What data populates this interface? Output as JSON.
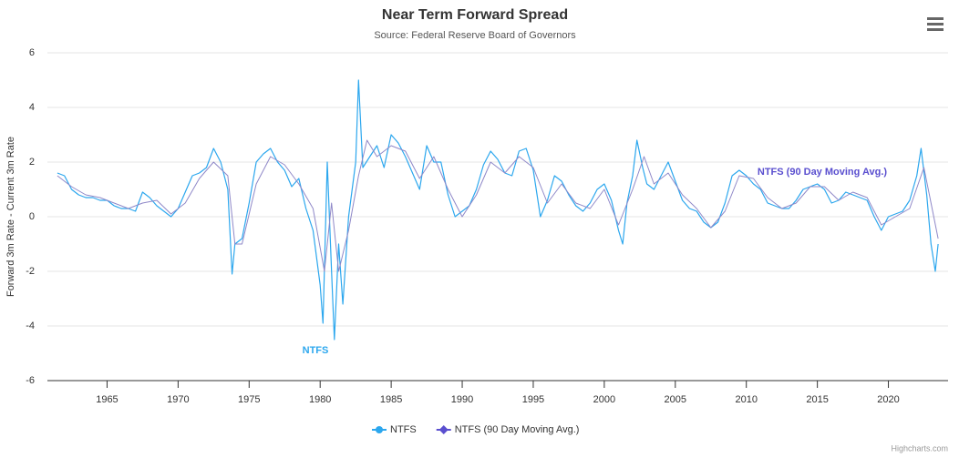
{
  "chart_data": {
    "type": "line",
    "title": "Near Term Forward Spread",
    "subtitle": "Source: Federal Reserve Board of Governors",
    "y_axis_label": "Forward 3m Rate - Current 3m Rate",
    "credits": "Highcharts.com",
    "xlim": [
      1960.8,
      2024.2
    ],
    "xticks": [
      1965,
      1970,
      1975,
      1980,
      1985,
      1990,
      1995,
      2000,
      2005,
      2010,
      2015,
      2020
    ],
    "ylim": [
      -6,
      6
    ],
    "yticks": [
      -6,
      -4,
      -2,
      0,
      2,
      4,
      6
    ],
    "grid": true,
    "legend": "bottom",
    "series": [
      {
        "name": "NTFS",
        "color": "#2ca7ee",
        "x": [
          1961.5,
          1962,
          1962.5,
          1963,
          1963.5,
          1964,
          1964.5,
          1965,
          1965.5,
          1966,
          1966.5,
          1967,
          1967.5,
          1968,
          1968.5,
          1969,
          1969.5,
          1970,
          1970.5,
          1971,
          1971.5,
          1972,
          1972.5,
          1973,
          1973.5,
          1973.8,
          1974,
          1974.5,
          1975,
          1975.5,
          1976,
          1976.5,
          1977,
          1977.5,
          1978,
          1978.5,
          1979,
          1979.5,
          1980,
          1980.2,
          1980.5,
          1980.8,
          1981,
          1981.3,
          1981.6,
          1982,
          1982.5,
          1982.7,
          1983,
          1983.5,
          1984,
          1984.5,
          1985,
          1985.5,
          1986,
          1986.5,
          1987,
          1987.5,
          1988,
          1988.5,
          1989,
          1989.5,
          1990,
          1990.5,
          1991,
          1991.5,
          1992,
          1992.5,
          1993,
          1993.5,
          1994,
          1994.5,
          1995,
          1995.5,
          1996,
          1996.5,
          1997,
          1997.5,
          1998,
          1998.5,
          1999,
          1999.5,
          2000,
          2000.5,
          2001,
          2001.3,
          2001.6,
          2002,
          2002.3,
          2002.7,
          2003,
          2003.5,
          2004,
          2004.5,
          2005,
          2005.5,
          2006,
          2006.5,
          2007,
          2007.5,
          2008,
          2008.5,
          2009,
          2009.5,
          2010,
          2010.5,
          2011,
          2011.5,
          2012,
          2012.5,
          2013,
          2013.5,
          2014,
          2014.5,
          2015,
          2015.5,
          2016,
          2016.5,
          2017,
          2017.5,
          2018,
          2018.5,
          2019,
          2019.5,
          2020,
          2020.5,
          2021,
          2021.5,
          2022,
          2022.3,
          2022.7,
          2023,
          2023.3,
          2023.5
        ],
        "values": [
          1.6,
          1.5,
          1.0,
          0.8,
          0.7,
          0.7,
          0.6,
          0.6,
          0.4,
          0.3,
          0.3,
          0.2,
          0.9,
          0.7,
          0.4,
          0.2,
          0.0,
          0.3,
          0.9,
          1.5,
          1.6,
          1.8,
          2.5,
          2.0,
          1.0,
          -2.1,
          -1.0,
          -0.8,
          0.5,
          2.0,
          2.3,
          2.5,
          2.0,
          1.7,
          1.1,
          1.4,
          0.3,
          -0.5,
          -2.5,
          -3.9,
          2.0,
          -2.0,
          -4.5,
          -1.0,
          -3.2,
          0.0,
          2.0,
          5.0,
          1.8,
          2.2,
          2.6,
          1.8,
          3.0,
          2.7,
          2.2,
          1.6,
          1.0,
          2.6,
          2.0,
          2.0,
          0.8,
          0.0,
          0.2,
          0.4,
          1.0,
          1.9,
          2.4,
          2.1,
          1.6,
          1.5,
          2.4,
          2.5,
          1.7,
          0.0,
          0.6,
          1.5,
          1.3,
          0.8,
          0.4,
          0.2,
          0.5,
          1.0,
          1.2,
          0.6,
          -0.5,
          -1.0,
          0.5,
          1.5,
          2.8,
          1.8,
          1.2,
          1.0,
          1.5,
          2.0,
          1.3,
          0.6,
          0.3,
          0.2,
          -0.2,
          -0.4,
          -0.2,
          0.5,
          1.5,
          1.7,
          1.5,
          1.2,
          1.0,
          0.5,
          0.4,
          0.3,
          0.3,
          0.6,
          1.0,
          1.1,
          1.2,
          1.0,
          0.5,
          0.6,
          0.9,
          0.8,
          0.7,
          0.6,
          0.0,
          -0.5,
          0.0,
          0.1,
          0.2,
          0.6,
          1.5,
          2.5,
          0.8,
          -1.0,
          -2.0,
          -1.0
        ]
      },
      {
        "name": "NTFS (90 Day Moving Avg.)",
        "color": "#8f88c8",
        "x": [
          1961.5,
          1962.5,
          1963.5,
          1964.5,
          1965.5,
          1966.5,
          1967.5,
          1968.5,
          1969.5,
          1970.5,
          1971.5,
          1972.5,
          1973.5,
          1974,
          1974.5,
          1975.5,
          1976.5,
          1977.5,
          1978.5,
          1979.5,
          1980.3,
          1980.8,
          1981.3,
          1982,
          1982.7,
          1983.3,
          1984,
          1985,
          1986,
          1987,
          1988,
          1989,
          1990,
          1991,
          1992,
          1993,
          1994,
          1995,
          1996,
          1997,
          1998,
          1999,
          2000,
          2001,
          2002,
          2002.8,
          2003.5,
          2004.5,
          2005.5,
          2006.5,
          2007.5,
          2008.5,
          2009.5,
          2010.5,
          2011.5,
          2012.5,
          2013.5,
          2014.5,
          2015.5,
          2016.5,
          2017.5,
          2018.5,
          2019.5,
          2020.5,
          2021.5,
          2022.5,
          2023,
          2023.5
        ],
        "values": [
          1.5,
          1.1,
          0.8,
          0.7,
          0.5,
          0.3,
          0.5,
          0.6,
          0.1,
          0.5,
          1.4,
          2.0,
          1.5,
          -1.0,
          -1.0,
          1.2,
          2.2,
          1.9,
          1.2,
          0.3,
          -2.0,
          0.5,
          -2.0,
          -0.5,
          1.5,
          2.8,
          2.2,
          2.6,
          2.4,
          1.4,
          2.2,
          1.0,
          0.0,
          0.8,
          2.0,
          1.6,
          2.2,
          1.8,
          0.5,
          1.2,
          0.5,
          0.3,
          1.0,
          -0.3,
          1.0,
          2.2,
          1.2,
          1.6,
          0.8,
          0.3,
          -0.4,
          0.2,
          1.5,
          1.4,
          0.7,
          0.3,
          0.5,
          1.1,
          1.1,
          0.6,
          0.9,
          0.7,
          -0.3,
          0.0,
          0.3,
          1.8,
          0.5,
          -0.8
        ]
      }
    ]
  }
}
